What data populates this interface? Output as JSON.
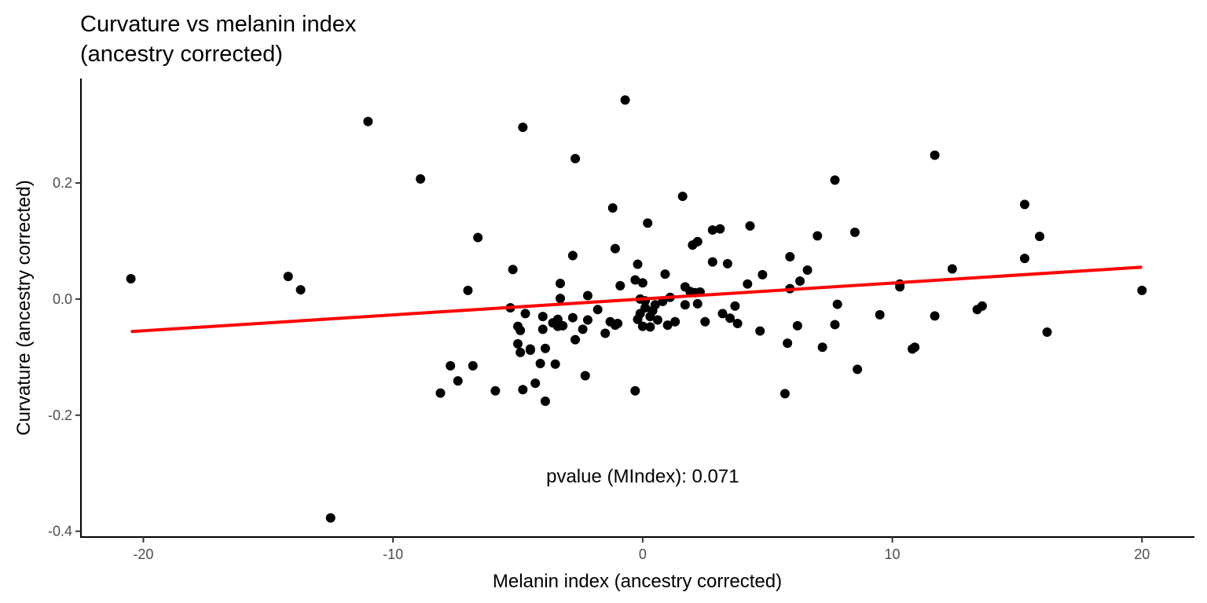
{
  "chart_data": {
    "type": "scatter",
    "title_line1": "Curvature vs melanin index",
    "title_line2": "(ancestry corrected)",
    "xlabel": "Melanin index (ancestry corrected)",
    "ylabel": "Curvature (ancestry corrected)",
    "xlim": [
      -22.5,
      22.1
    ],
    "ylim": [
      -0.41,
      0.38
    ],
    "x_ticks": [
      -20,
      -10,
      0,
      10,
      20
    ],
    "x_tick_labels": [
      "-20",
      "-10",
      "0",
      "10",
      "20"
    ],
    "y_ticks": [
      -0.4,
      -0.2,
      0.0,
      0.2
    ],
    "y_tick_labels": [
      "-0.4",
      "-0.2",
      "0.0",
      "0.2"
    ],
    "grid": false,
    "annotation": {
      "text": "pvalue (MIndex): 0.071",
      "x": 0,
      "y": -0.305
    },
    "fit_line": {
      "color": "#ff0000",
      "x": [
        -20.5,
        20.0
      ],
      "y": [
        -0.056,
        0.055
      ]
    },
    "point_color": "#000000",
    "points": [
      [
        -20.5,
        0.035
      ],
      [
        -14.2,
        0.039
      ],
      [
        -13.7,
        0.016
      ],
      [
        -12.5,
        -0.377
      ],
      [
        -11.0,
        0.306
      ],
      [
        -8.9,
        0.207
      ],
      [
        -8.1,
        -0.162
      ],
      [
        -7.7,
        -0.115
      ],
      [
        -7.4,
        -0.141
      ],
      [
        -7.0,
        0.015
      ],
      [
        -6.8,
        -0.115
      ],
      [
        -6.6,
        0.106
      ],
      [
        -5.9,
        -0.158
      ],
      [
        -5.3,
        -0.015
      ],
      [
        -5.2,
        0.051
      ],
      [
        -5.0,
        -0.047
      ],
      [
        -5.0,
        -0.077
      ],
      [
        -4.9,
        -0.054
      ],
      [
        -4.9,
        -0.092
      ],
      [
        -4.8,
        0.296
      ],
      [
        -4.8,
        -0.156
      ],
      [
        -4.7,
        -0.025
      ],
      [
        -4.5,
        -0.088
      ],
      [
        -4.5,
        -0.086
      ],
      [
        -4.3,
        -0.145
      ],
      [
        -4.1,
        -0.111
      ],
      [
        -4.0,
        -0.052
      ],
      [
        -4.0,
        -0.03
      ],
      [
        -3.9,
        -0.176
      ],
      [
        -3.9,
        -0.085
      ],
      [
        -3.6,
        -0.041
      ],
      [
        -3.5,
        -0.112
      ],
      [
        -3.4,
        -0.047
      ],
      [
        -3.4,
        -0.035
      ],
      [
        -3.3,
        0.001
      ],
      [
        -3.3,
        0.027
      ],
      [
        -3.2,
        -0.046
      ],
      [
        -2.8,
        0.075
      ],
      [
        -2.8,
        -0.032
      ],
      [
        -2.7,
        0.242
      ],
      [
        -2.7,
        -0.07
      ],
      [
        -2.4,
        -0.052
      ],
      [
        -2.3,
        -0.132
      ],
      [
        -2.2,
        0.006
      ],
      [
        -2.2,
        -0.036
      ],
      [
        -1.8,
        -0.018
      ],
      [
        -1.5,
        -0.059
      ],
      [
        -1.3,
        -0.039
      ],
      [
        -1.2,
        0.157
      ],
      [
        -1.1,
        0.087
      ],
      [
        -1.1,
        -0.045
      ],
      [
        -1.0,
        -0.042
      ],
      [
        -0.9,
        0.023
      ],
      [
        -0.7,
        0.343
      ],
      [
        -0.3,
        0.033
      ],
      [
        -0.2,
        0.06
      ],
      [
        -0.2,
        -0.035
      ],
      [
        -0.1,
        0.0
      ],
      [
        -0.1,
        -0.025
      ],
      [
        0.0,
        0.028
      ],
      [
        -0.3,
        -0.158
      ],
      [
        0.0,
        -0.047
      ],
      [
        0.1,
        -0.003
      ],
      [
        0.1,
        -0.015
      ],
      [
        0.2,
        0.131
      ],
      [
        0.3,
        -0.03
      ],
      [
        0.3,
        -0.048
      ],
      [
        0.4,
        -0.02
      ],
      [
        0.5,
        -0.01
      ],
      [
        0.6,
        -0.036
      ],
      [
        0.8,
        -0.004
      ],
      [
        0.9,
        0.043
      ],
      [
        1.0,
        -0.045
      ],
      [
        1.1,
        0.003
      ],
      [
        1.3,
        -0.039
      ],
      [
        1.6,
        0.177
      ],
      [
        1.7,
        0.021
      ],
      [
        1.7,
        -0.01
      ],
      [
        1.9,
        0.013
      ],
      [
        2.0,
        0.093
      ],
      [
        2.1,
        0.011
      ],
      [
        2.2,
        -0.008
      ],
      [
        2.2,
        0.099
      ],
      [
        2.3,
        0.012
      ],
      [
        2.5,
        -0.039
      ],
      [
        2.8,
        0.064
      ],
      [
        2.8,
        0.119
      ],
      [
        3.1,
        0.121
      ],
      [
        3.2,
        -0.025
      ],
      [
        3.4,
        0.061
      ],
      [
        3.5,
        -0.033
      ],
      [
        3.7,
        -0.012
      ],
      [
        3.8,
        -0.042
      ],
      [
        4.2,
        0.026
      ],
      [
        4.3,
        0.126
      ],
      [
        4.7,
        -0.055
      ],
      [
        4.8,
        0.042
      ],
      [
        5.7,
        -0.163
      ],
      [
        5.8,
        -0.076
      ],
      [
        5.9,
        0.018
      ],
      [
        5.9,
        0.073
      ],
      [
        6.2,
        -0.046
      ],
      [
        6.3,
        0.031
      ],
      [
        6.6,
        0.05
      ],
      [
        7.0,
        0.109
      ],
      [
        7.2,
        -0.083
      ],
      [
        7.7,
        -0.044
      ],
      [
        7.8,
        -0.009
      ],
      [
        7.7,
        0.205
      ],
      [
        8.5,
        0.115
      ],
      [
        8.6,
        -0.121
      ],
      [
        9.5,
        -0.027
      ],
      [
        10.3,
        0.026
      ],
      [
        10.3,
        0.021
      ],
      [
        10.8,
        -0.086
      ],
      [
        10.9,
        -0.083
      ],
      [
        11.7,
        -0.029
      ],
      [
        11.7,
        0.248
      ],
      [
        12.4,
        0.052
      ],
      [
        13.4,
        -0.018
      ],
      [
        13.6,
        -0.012
      ],
      [
        15.3,
        0.163
      ],
      [
        15.3,
        0.07
      ],
      [
        15.9,
        0.108
      ],
      [
        16.2,
        -0.057
      ],
      [
        20.0,
        0.015
      ]
    ]
  }
}
